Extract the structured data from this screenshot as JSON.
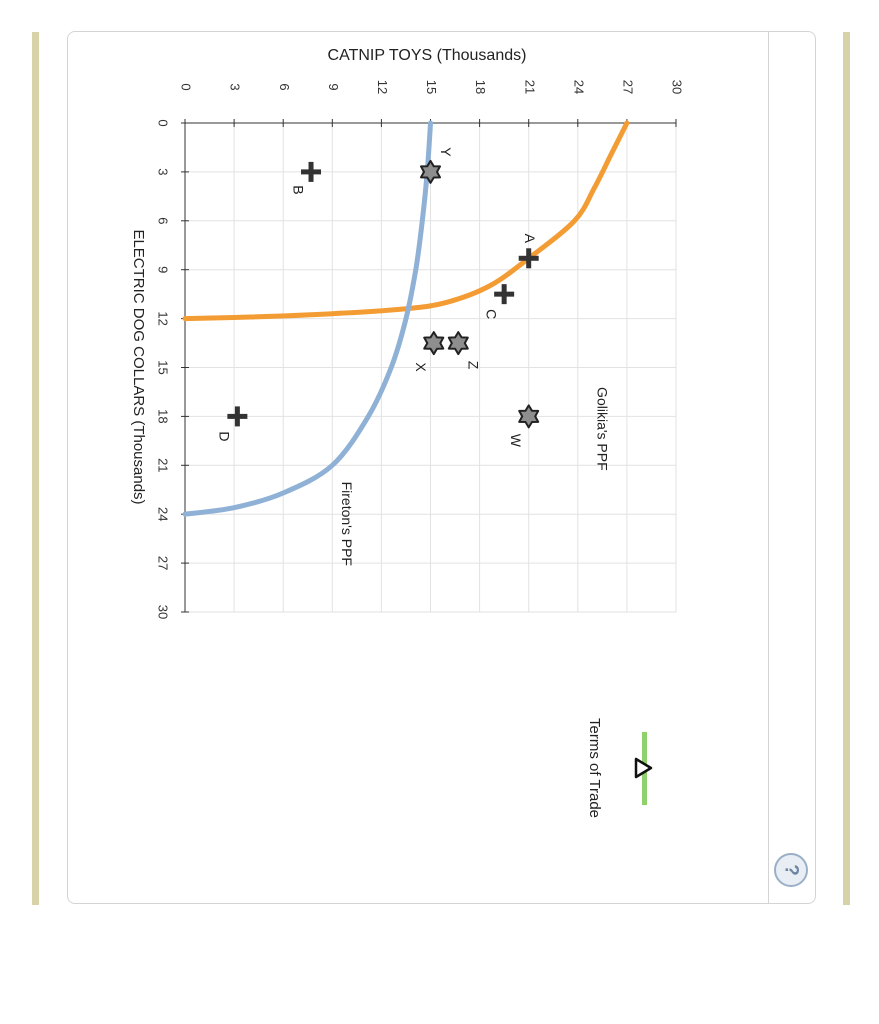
{
  "chart_data": {
    "type": "line",
    "orientation": "rotated-90-clockwise",
    "title": "CATNIP TOYS (Thousands)",
    "xlabel": "ELECTRIC DOG COLLARS (Thousands)",
    "ylabel": "CATNIP TOYS (Thousands)",
    "xlim": [
      0,
      30
    ],
    "ylim": [
      0,
      30
    ],
    "x_ticks": [
      0,
      3,
      6,
      9,
      12,
      15,
      18,
      21,
      24,
      27,
      30
    ],
    "y_ticks": [
      0,
      3,
      6,
      9,
      12,
      15,
      18,
      21,
      24,
      27,
      30
    ],
    "grid": true,
    "series": [
      {
        "name": "Golikia's PPF",
        "color": "#f39c34",
        "points": [
          [
            0,
            27
          ],
          [
            2,
            26
          ],
          [
            4,
            25
          ],
          [
            6,
            23.8
          ],
          [
            8.3,
            21
          ],
          [
            10,
            18.6
          ],
          [
            11,
            16
          ],
          [
            11.4,
            13.5
          ],
          [
            11.7,
            9
          ],
          [
            11.9,
            4
          ],
          [
            12,
            0
          ]
        ]
      },
      {
        "name": "Fireton's PPF",
        "color": "#8fb1d6",
        "points": [
          [
            0,
            15
          ],
          [
            3,
            14.8
          ],
          [
            6,
            14.5
          ],
          [
            9,
            14.1
          ],
          [
            12,
            13.5
          ],
          [
            15,
            12.6
          ],
          [
            18,
            11.2
          ],
          [
            21,
            9
          ],
          [
            22.7,
            6
          ],
          [
            23.6,
            3
          ],
          [
            24,
            0
          ]
        ]
      }
    ],
    "points": [
      {
        "label": "A",
        "x": 8.3,
        "y": 21,
        "marker": "plus"
      },
      {
        "label": "B",
        "x": 3,
        "y": 7.7,
        "marker": "plus"
      },
      {
        "label": "C",
        "x": 10.5,
        "y": 19.5,
        "marker": "plus"
      },
      {
        "label": "D",
        "x": 18,
        "y": 3.2,
        "marker": "plus"
      },
      {
        "label": "W",
        "x": 18,
        "y": 21,
        "marker": "star"
      },
      {
        "label": "X",
        "x": 13.5,
        "y": 15.2,
        "marker": "star"
      },
      {
        "label": "Y",
        "x": 3,
        "y": 15,
        "marker": "star"
      },
      {
        "label": "Z",
        "x": 13.5,
        "y": 16.7,
        "marker": "star"
      }
    ]
  },
  "legend": {
    "terms_of_trade_label": "Terms of Trade",
    "terms_of_trade_color": "#8ed16d"
  },
  "help": {
    "icon": "question-mark-icon",
    "glyph": "?"
  }
}
